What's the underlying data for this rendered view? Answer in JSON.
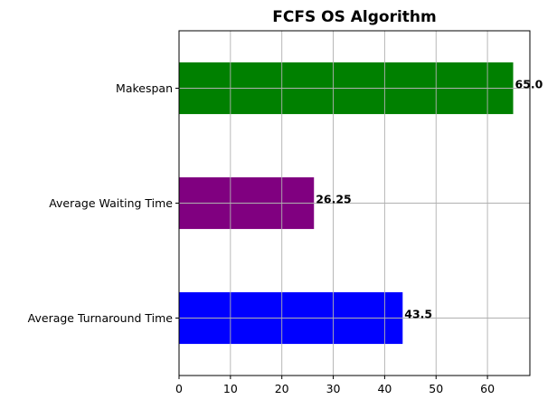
{
  "chart_data": {
    "type": "bar",
    "orientation": "horizontal",
    "title": "FCFS OS Algorithm",
    "xlabel": "",
    "ylabel": "",
    "categories": [
      "Average Turnaround Time",
      "Average Waiting Time",
      "Makespan"
    ],
    "values": [
      43.5,
      26.25,
      65.0
    ],
    "value_labels": [
      "43.5",
      "26.25",
      "65.0"
    ],
    "colors": [
      "#0000ff",
      "#800080",
      "#008000"
    ],
    "xlim": [
      0,
      68.25
    ],
    "x_ticks": [
      0,
      10,
      20,
      30,
      40,
      50,
      60
    ],
    "grid": true,
    "legend": "none"
  }
}
